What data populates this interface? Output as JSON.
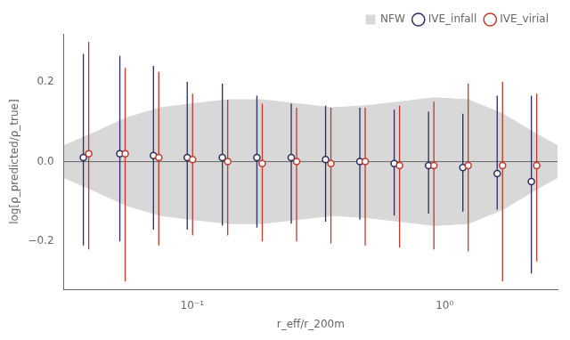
{
  "chart_data": {
    "type": "scatter",
    "x_label": "r_eff/r_200m",
    "y_label": "log[ρ_predicted/ρ_true]",
    "log": "x",
    "grid": false,
    "legend": "upper right",
    "xlim": [
      0.031,
      2.8
    ],
    "ylim": [
      -0.32,
      0.32
    ],
    "xticks": [
      {
        "value": 0.1,
        "label": "10⁻¹"
      },
      {
        "value": 1.0,
        "label": "10⁰"
      }
    ],
    "yticks": [
      {
        "value": -0.2,
        "label": "−0.2"
      },
      {
        "value": 0.0,
        "label": "0.0"
      },
      0.2
    ],
    "x": [
      0.038,
      0.053,
      0.072,
      0.098,
      0.135,
      0.185,
      0.253,
      0.346,
      0.473,
      0.647,
      0.885,
      1.21,
      1.655,
      2.26
    ],
    "series": [
      {
        "name": "IVE_infall",
        "color": "#2b2d5e",
        "marker": "o",
        "values": [
          0.01,
          0.02,
          0.015,
          0.01,
          0.01,
          0.01,
          0.01,
          0.005,
          0.0,
          -0.005,
          -0.01,
          -0.015,
          -0.03,
          -0.05
        ],
        "lower": [
          -0.21,
          -0.2,
          -0.17,
          -0.17,
          -0.16,
          -0.165,
          -0.155,
          -0.15,
          -0.145,
          -0.135,
          -0.13,
          -0.125,
          -0.12,
          -0.28
        ],
        "upper": [
          0.27,
          0.265,
          0.24,
          0.2,
          0.195,
          0.165,
          0.145,
          0.14,
          0.135,
          0.13,
          0.125,
          0.12,
          0.165,
          0.165
        ]
      },
      {
        "name": "IVE_virial",
        "color": "#c0392b",
        "marker": "o",
        "values": [
          0.02,
          0.02,
          0.01,
          0.005,
          0.0,
          -0.005,
          0.0,
          -0.005,
          0.0,
          -0.01,
          -0.01,
          -0.01,
          -0.01,
          -0.01
        ],
        "lower": [
          -0.22,
          -0.3,
          -0.21,
          -0.185,
          -0.185,
          -0.2,
          -0.2,
          -0.205,
          -0.21,
          -0.215,
          -0.22,
          -0.225,
          -0.3,
          -0.25
        ],
        "upper": [
          0.3,
          0.235,
          0.225,
          0.17,
          0.155,
          0.145,
          0.135,
          0.135,
          0.135,
          0.14,
          0.15,
          0.195,
          0.2,
          0.17
        ]
      }
    ],
    "band": {
      "name": "NFW",
      "color": "#d8d8d8",
      "x": [
        0.031,
        0.04,
        0.055,
        0.075,
        0.1,
        0.14,
        0.19,
        0.26,
        0.36,
        0.49,
        0.67,
        0.91,
        1.24,
        1.7,
        2.3,
        2.8
      ],
      "lower": [
        -0.04,
        -0.07,
        -0.11,
        -0.135,
        -0.145,
        -0.155,
        -0.155,
        -0.145,
        -0.135,
        -0.14,
        -0.15,
        -0.16,
        -0.155,
        -0.12,
        -0.07,
        -0.04
      ],
      "upper": [
        0.04,
        0.07,
        0.11,
        0.135,
        0.145,
        0.155,
        0.155,
        0.145,
        0.135,
        0.14,
        0.15,
        0.16,
        0.155,
        0.12,
        0.07,
        0.04
      ]
    },
    "reference_lines": [
      {
        "y": 0,
        "color": "#666666"
      }
    ]
  }
}
